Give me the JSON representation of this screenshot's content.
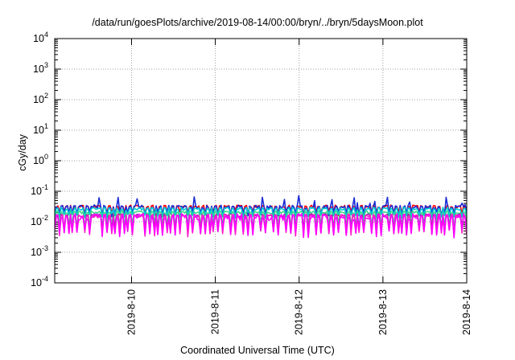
{
  "chart_data": {
    "type": "line",
    "title": "/data/run/goesPlots/archive/2019-08-14/00:00/bryn/../bryn/5daysMoon.plot",
    "xlabel": "Coordinated Universal Time (UTC)",
    "ylabel": "cGy/day",
    "y_scale": "log",
    "ylim": [
      0.0001,
      10000
    ],
    "y_ticks": [
      {
        "base": "10",
        "exp": "-4"
      },
      {
        "base": "10",
        "exp": "-3"
      },
      {
        "base": "10",
        "exp": "-2"
      },
      {
        "base": "10",
        "exp": "-1"
      },
      {
        "base": "10",
        "exp": "0"
      },
      {
        "base": "10",
        "exp": "1"
      },
      {
        "base": "10",
        "exp": "2"
      },
      {
        "base": "10",
        "exp": "3"
      },
      {
        "base": "10",
        "exp": "4"
      }
    ],
    "xlim": [
      "2019-08-09T02:00",
      "2019-08-14T00:00"
    ],
    "x_ticks": [
      "2019-8-10",
      "2019-8-11",
      "2019-8-12",
      "2019-8-13",
      "2019-8-14"
    ],
    "grid": true,
    "series": [
      {
        "color": "#ff0000",
        "baseline": 0.032,
        "dip": 0.62,
        "noise": 0.1,
        "spike": 0.0
      },
      {
        "color": "#1a2bd6",
        "baseline": 0.031,
        "dip": 0.6,
        "noise": 0.12,
        "spike": 0.32
      },
      {
        "color": "#00c8d2",
        "baseline": 0.027,
        "dip": 0.6,
        "noise": 0.1,
        "spike": 0.0
      },
      {
        "color": "#3bd68c",
        "baseline": 0.0205,
        "dip": 0.35,
        "noise": 0.1,
        "spike": 0.0
      },
      {
        "color": "#9b2aa6",
        "baseline": 0.0162,
        "dip": 0.32,
        "noise": 0.12,
        "spike": 0.0
      },
      {
        "color": "#ff1ecc",
        "baseline": 0.0155,
        "dip": 0.28,
        "noise": 0.14,
        "spike": 0.0
      },
      {
        "color": "#ff00ff",
        "baseline": 0.0148,
        "dip": 0.3,
        "noise": 0.25,
        "spike": 0.0
      }
    ]
  }
}
